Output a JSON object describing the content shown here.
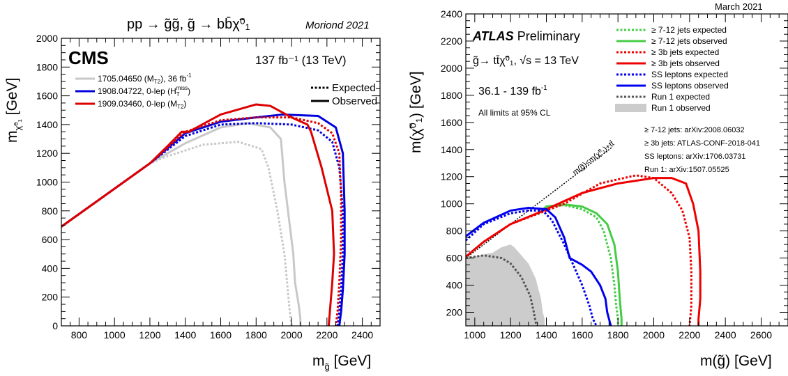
{
  "chart_data": [
    {
      "type": "line",
      "title": "pp → g̃g̃,  g̃ → bb̄χ̃⁰₁",
      "conference": "Moriond 2021",
      "experiment": "CMS",
      "lumi": "137 fb⁻¹ (13 TeV)",
      "xlabel": "m",
      "xlabel_sub": "g̃",
      "xlabel_unit": "[GeV]",
      "ylabel": "m",
      "ylabel_sub": "χ̃⁰₁",
      "ylabel_unit": "[GeV]",
      "xlim": [
        700,
        2500
      ],
      "ylim": [
        0,
        2000
      ],
      "xticks": [
        800,
        1000,
        1200,
        1400,
        1600,
        1800,
        2000,
        2200,
        2400
      ],
      "yticks": [
        0,
        200,
        400,
        600,
        800,
        1000,
        1200,
        1400,
        1600,
        1800,
        2000
      ],
      "style_legend": [
        {
          "label": "Expected",
          "dash": "dotted"
        },
        {
          "label": "Observed",
          "dash": "solid"
        }
      ],
      "series": [
        {
          "name": "1705.04650 (M_T2), 36 fb⁻¹",
          "legend_main": "1705.04650 (M",
          "legend_sub": "T2",
          "legend_tail": "), 36 fb",
          "legend_sup": "-1",
          "color": "#c8c8c8",
          "kind": "observed",
          "x": [
            700,
            1200,
            1400,
            1600,
            1750,
            1880,
            1940,
            1960,
            1990,
            2010,
            2020,
            2040,
            2050,
            2050
          ],
          "y": [
            690,
            1130,
            1270,
            1380,
            1410,
            1380,
            1300,
            1000,
            700,
            500,
            300,
            150,
            50,
            0
          ]
        },
        {
          "name": "1705.04650 (M_T2), 36 fb⁻¹",
          "color": "#c8c8c8",
          "kind": "expected",
          "x": [
            700,
            1200,
            1300,
            1500,
            1700,
            1830,
            1870,
            1920,
            1960,
            1975,
            1990,
            2000,
            2000
          ],
          "y": [
            690,
            1130,
            1180,
            1260,
            1280,
            1230,
            1100,
            800,
            500,
            300,
            100,
            10,
            0
          ]
        },
        {
          "name": "1908.04722, 0-lep (H_T^miss)",
          "legend_main": "1908.04722, 0-lep (H",
          "legend_sub": "T",
          "legend_sup": "miss",
          "legend_tail": ")",
          "color": "#0000dd",
          "kind": "observed",
          "x": [
            700,
            1200,
            1400,
            1600,
            1800,
            1950,
            2150,
            2250,
            2290,
            2300,
            2300,
            2290,
            2280,
            2270
          ],
          "y": [
            690,
            1130,
            1340,
            1420,
            1450,
            1470,
            1460,
            1380,
            1200,
            800,
            500,
            250,
            100,
            0
          ]
        },
        {
          "name": "1908.04722, 0-lep (H_T^miss)",
          "color": "#0000dd",
          "kind": "expected",
          "x": [
            700,
            1200,
            1400,
            1600,
            1800,
            2000,
            2150,
            2230,
            2270,
            2290,
            2290,
            2280,
            2270,
            2260
          ],
          "y": [
            690,
            1130,
            1320,
            1400,
            1410,
            1400,
            1360,
            1280,
            1100,
            800,
            500,
            250,
            100,
            0
          ]
        },
        {
          "name": "1909.03460, 0-lep (M_T2)",
          "legend_main": "1909.03460, 0-lep (M",
          "legend_sub": "T2",
          "legend_tail": ")",
          "color": "#dd0000",
          "kind": "observed",
          "x": [
            700,
            1200,
            1300,
            1380,
            1420,
            1600,
            1800,
            1880,
            2000,
            2090,
            2110,
            2170,
            2230,
            2240,
            2230,
            2220,
            2210
          ],
          "y": [
            690,
            1130,
            1250,
            1350,
            1350,
            1470,
            1540,
            1530,
            1450,
            1400,
            1350,
            1100,
            800,
            500,
            300,
            150,
            0
          ]
        },
        {
          "name": "1909.03460, 0-lep (M_T2)",
          "color": "#dd0000",
          "kind": "expected",
          "x": [
            700,
            1200,
            1400,
            1600,
            1800,
            2000,
            2150,
            2230,
            2270,
            2280,
            2280,
            2270,
            2260,
            2250
          ],
          "y": [
            690,
            1130,
            1350,
            1430,
            1450,
            1450,
            1410,
            1340,
            1200,
            900,
            600,
            300,
            100,
            0
          ]
        }
      ]
    },
    {
      "type": "line",
      "date": "March 2021",
      "experiment": "ATLAS",
      "experiment_tag": "Preliminary",
      "process": "g̃→ tt̄χ̃⁰₁,  √s = 13 TeV",
      "lumi": "36.1 - 139 fb",
      "lumi_sup": "-1",
      "cl_note": "All limits at 95% CL",
      "xlabel": "m(g̃) [GeV]",
      "ylabel": "m(χ̃⁰₁) [GeV]",
      "xlim": [
        950,
        2750
      ],
      "ylim": [
        100,
        2400
      ],
      "xticks": [
        1000,
        1200,
        1400,
        1600,
        1800,
        2000,
        2200,
        2400,
        2600
      ],
      "yticks": [
        200,
        400,
        600,
        800,
        1000,
        1200,
        1400,
        1600,
        1800,
        2000,
        2200,
        2400
      ],
      "diagonal_label": "m(g̃)<m(χ̃⁰₁)+tt̄",
      "references": [
        "≥ 7-12 jets: arXiv:2008.06032",
        "≥ 3b jets: ATLAS-CONF-2018-041",
        "SS leptons: arXiv:1706.03731",
        "Run 1: arXiv:1507.05525"
      ],
      "series": [
        {
          "name": "≥ 7-12 jets expected",
          "color": "#44cc44",
          "kind": "expected",
          "x": [
            1350,
            1400,
            1500,
            1600,
            1680,
            1720,
            1760,
            1780,
            1790,
            1800,
            1800
          ],
          "y": [
            920,
            980,
            990,
            960,
            900,
            800,
            600,
            400,
            250,
            150,
            100
          ]
        },
        {
          "name": "≥ 7-12 jets observed",
          "color": "#44cc44",
          "kind": "observed",
          "x": [
            1350,
            1400,
            1500,
            1600,
            1680,
            1740,
            1780,
            1800,
            1810,
            1820,
            1820
          ],
          "y": [
            920,
            980,
            995,
            980,
            930,
            850,
            700,
            500,
            300,
            150,
            100
          ]
        },
        {
          "name": "≥ 3b jets expected",
          "color": "#ee0000",
          "kind": "expected",
          "x": [
            950,
            1050,
            1200,
            1400,
            1500,
            1700,
            1900,
            2000,
            2100,
            2160,
            2200,
            2210,
            2210,
            2200
          ],
          "y": [
            610,
            720,
            850,
            950,
            1000,
            1150,
            1210,
            1190,
            1080,
            950,
            750,
            500,
            250,
            100
          ]
        },
        {
          "name": "≥ 3b jets observed",
          "color": "#ee0000",
          "kind": "observed",
          "x": [
            950,
            1050,
            1200,
            1330,
            1400,
            1500,
            1600,
            1800,
            2000,
            2100,
            2180,
            2220,
            2250,
            2260,
            2260,
            2250,
            2250
          ],
          "y": [
            610,
            720,
            850,
            920,
            960,
            1020,
            1080,
            1150,
            1190,
            1190,
            1150,
            1000,
            800,
            500,
            300,
            150,
            100
          ]
        },
        {
          "name": "SS leptons expected",
          "color": "#0000ee",
          "kind": "expected",
          "x": [
            950,
            1050,
            1200,
            1300,
            1380,
            1430,
            1500,
            1550,
            1600,
            1640,
            1660,
            1680,
            1680
          ],
          "y": [
            730,
            850,
            930,
            950,
            950,
            880,
            700,
            550,
            400,
            250,
            150,
            100,
            100
          ]
        },
        {
          "name": "SS leptons observed",
          "color": "#0000ee",
          "kind": "observed",
          "x": [
            950,
            1050,
            1200,
            1300,
            1400,
            1450,
            1500,
            1530,
            1600,
            1650,
            1700,
            1730,
            1740,
            1750,
            1760,
            1760
          ],
          "y": [
            760,
            860,
            950,
            970,
            960,
            900,
            750,
            600,
            550,
            500,
            400,
            300,
            200,
            150,
            100,
            100
          ]
        },
        {
          "name": "Run 1 expected",
          "color": "#555555",
          "kind": "expected",
          "x": [
            950,
            1050,
            1150,
            1200,
            1260,
            1310,
            1330,
            1340,
            1345,
            1345
          ],
          "y": [
            600,
            620,
            600,
            560,
            460,
            320,
            200,
            130,
            100,
            100
          ]
        },
        {
          "name": "Run 1 observed",
          "color": "#cccccc",
          "kind": "band",
          "x": [
            950,
            950,
            1100,
            1150,
            1200,
            1220,
            1300,
            1340,
            1370,
            1380,
            1390,
            1390
          ],
          "y": [
            100,
            600,
            640,
            680,
            700,
            680,
            560,
            450,
            300,
            200,
            150,
            100
          ]
        }
      ]
    }
  ]
}
